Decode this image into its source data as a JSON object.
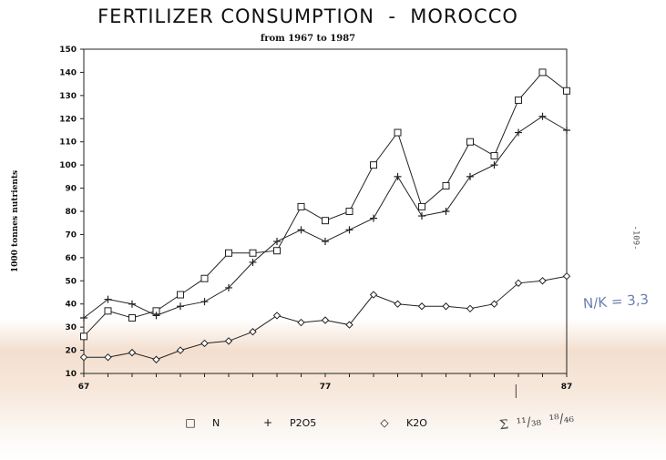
{
  "chart_data": {
    "type": "line",
    "title": "FERTILIZER CONSUMPTION  -  MOROCCO",
    "subtitle": "from 1967 to 1987",
    "ylabel": "1000 tonnes nutrients",
    "xlabel": "",
    "x": [
      67,
      68,
      69,
      70,
      71,
      72,
      73,
      74,
      75,
      76,
      77,
      78,
      79,
      80,
      81,
      82,
      83,
      84,
      85,
      86,
      87
    ],
    "x_tick_labels": [
      "67",
      "77",
      "87"
    ],
    "y_ticks": [
      10,
      20,
      30,
      40,
      50,
      60,
      70,
      80,
      90,
      100,
      110,
      120,
      130,
      140,
      150
    ],
    "ylim": [
      10,
      150
    ],
    "xlim": [
      67,
      87
    ],
    "legend_position": "bottom",
    "grid": false,
    "series": [
      {
        "name": "N",
        "marker": "square",
        "symbol": "□",
        "values": [
          26,
          37,
          34,
          37,
          44,
          51,
          62,
          62,
          63,
          82,
          76,
          80,
          100,
          114,
          82,
          91,
          110,
          104,
          128,
          140,
          132
        ]
      },
      {
        "name": "P2O5",
        "marker": "plus",
        "symbol": "+",
        "values": [
          34,
          42,
          40,
          35,
          39,
          41,
          47,
          58,
          67,
          72,
          67,
          72,
          77,
          95,
          78,
          80,
          95,
          100,
          114,
          121,
          115
        ]
      },
      {
        "name": "K2O",
        "marker": "diamond",
        "symbol": "◇",
        "values": [
          17,
          17,
          19,
          16,
          20,
          23,
          24,
          28,
          35,
          32,
          33,
          31,
          44,
          40,
          39,
          39,
          38,
          40,
          49,
          50,
          52
        ]
      }
    ]
  },
  "annotations": {
    "page_number": "-109-",
    "handwritten_ratio": "N/K = 3,3",
    "handwritten_sum": "Σ  ¹¹/₃₈  ¹⁸/₄₆"
  }
}
